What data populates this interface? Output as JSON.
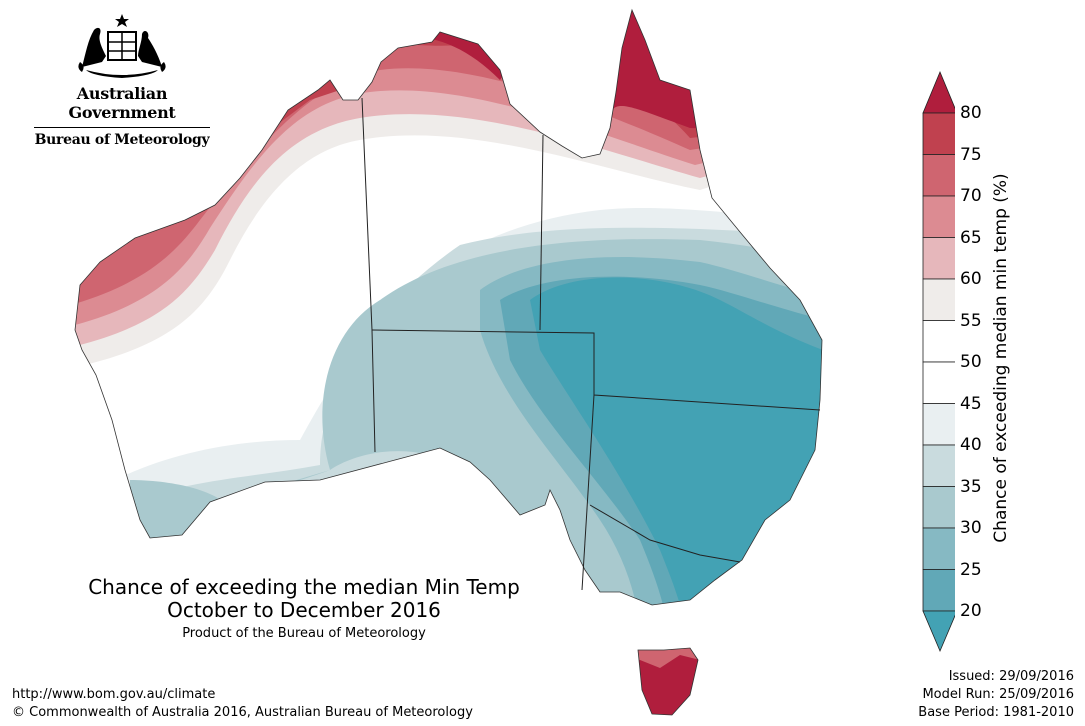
{
  "header": {
    "government": "Australian Government",
    "bureau": "Bureau of Meteorology"
  },
  "map": {
    "title": "Chance of exceeding the median Min Temp",
    "period": "October to December 2016",
    "product": "Product of the Bureau of Meteorology",
    "regions": [
      {
        "area": "northern Queensland (Cape York)",
        "chance_percent": "80+"
      },
      {
        "area": "Tasmania",
        "chance_percent": "80+"
      },
      {
        "area": "western Western Australia coast",
        "chance_percent": "70-75"
      },
      {
        "area": "central Western Australia",
        "chance_percent": "50-55"
      },
      {
        "area": "southern Northern Territory",
        "chance_percent": "40-45"
      },
      {
        "area": "South Australia",
        "chance_percent": "30-40"
      },
      {
        "area": "southern Queensland and New South Wales",
        "chance_percent": "20-25"
      }
    ]
  },
  "legend": {
    "title": "Chance of exceeding median min temp (%)",
    "ticks": [
      "80",
      "75",
      "70",
      "65",
      "60",
      "55",
      "50",
      "45",
      "40",
      "35",
      "30",
      "25",
      "20"
    ],
    "bins": [
      {
        "range": ">80",
        "color": "#b01e3d"
      },
      {
        "range": "75-80",
        "color": "#c0414f"
      },
      {
        "range": "70-75",
        "color": "#cf6570"
      },
      {
        "range": "65-70",
        "color": "#dc8b92"
      },
      {
        "range": "60-65",
        "color": "#e6b7bb"
      },
      {
        "range": "55-60",
        "color": "#efecea"
      },
      {
        "range": "50-55",
        "color": "#ffffff"
      },
      {
        "range": "45-50",
        "color": "#ffffff"
      },
      {
        "range": "40-45",
        "color": "#e9eff1"
      },
      {
        "range": "35-40",
        "color": "#c9dbde"
      },
      {
        "range": "30-35",
        "color": "#a9c9ce"
      },
      {
        "range": "25-30",
        "color": "#86b9c3"
      },
      {
        "range": "20-25",
        "color": "#61a8b7"
      },
      {
        "range": "<20",
        "color": "#43a2b4"
      }
    ]
  },
  "footer": {
    "url": "http://www.bom.gov.au/climate",
    "copyright": "© Commonwealth of Australia 2016, Australian Bureau of Meteorology",
    "issued": "Issued: 29/09/2016",
    "model_run": "Model Run: 25/09/2016",
    "base_period": "Base Period: 1981-2010"
  }
}
